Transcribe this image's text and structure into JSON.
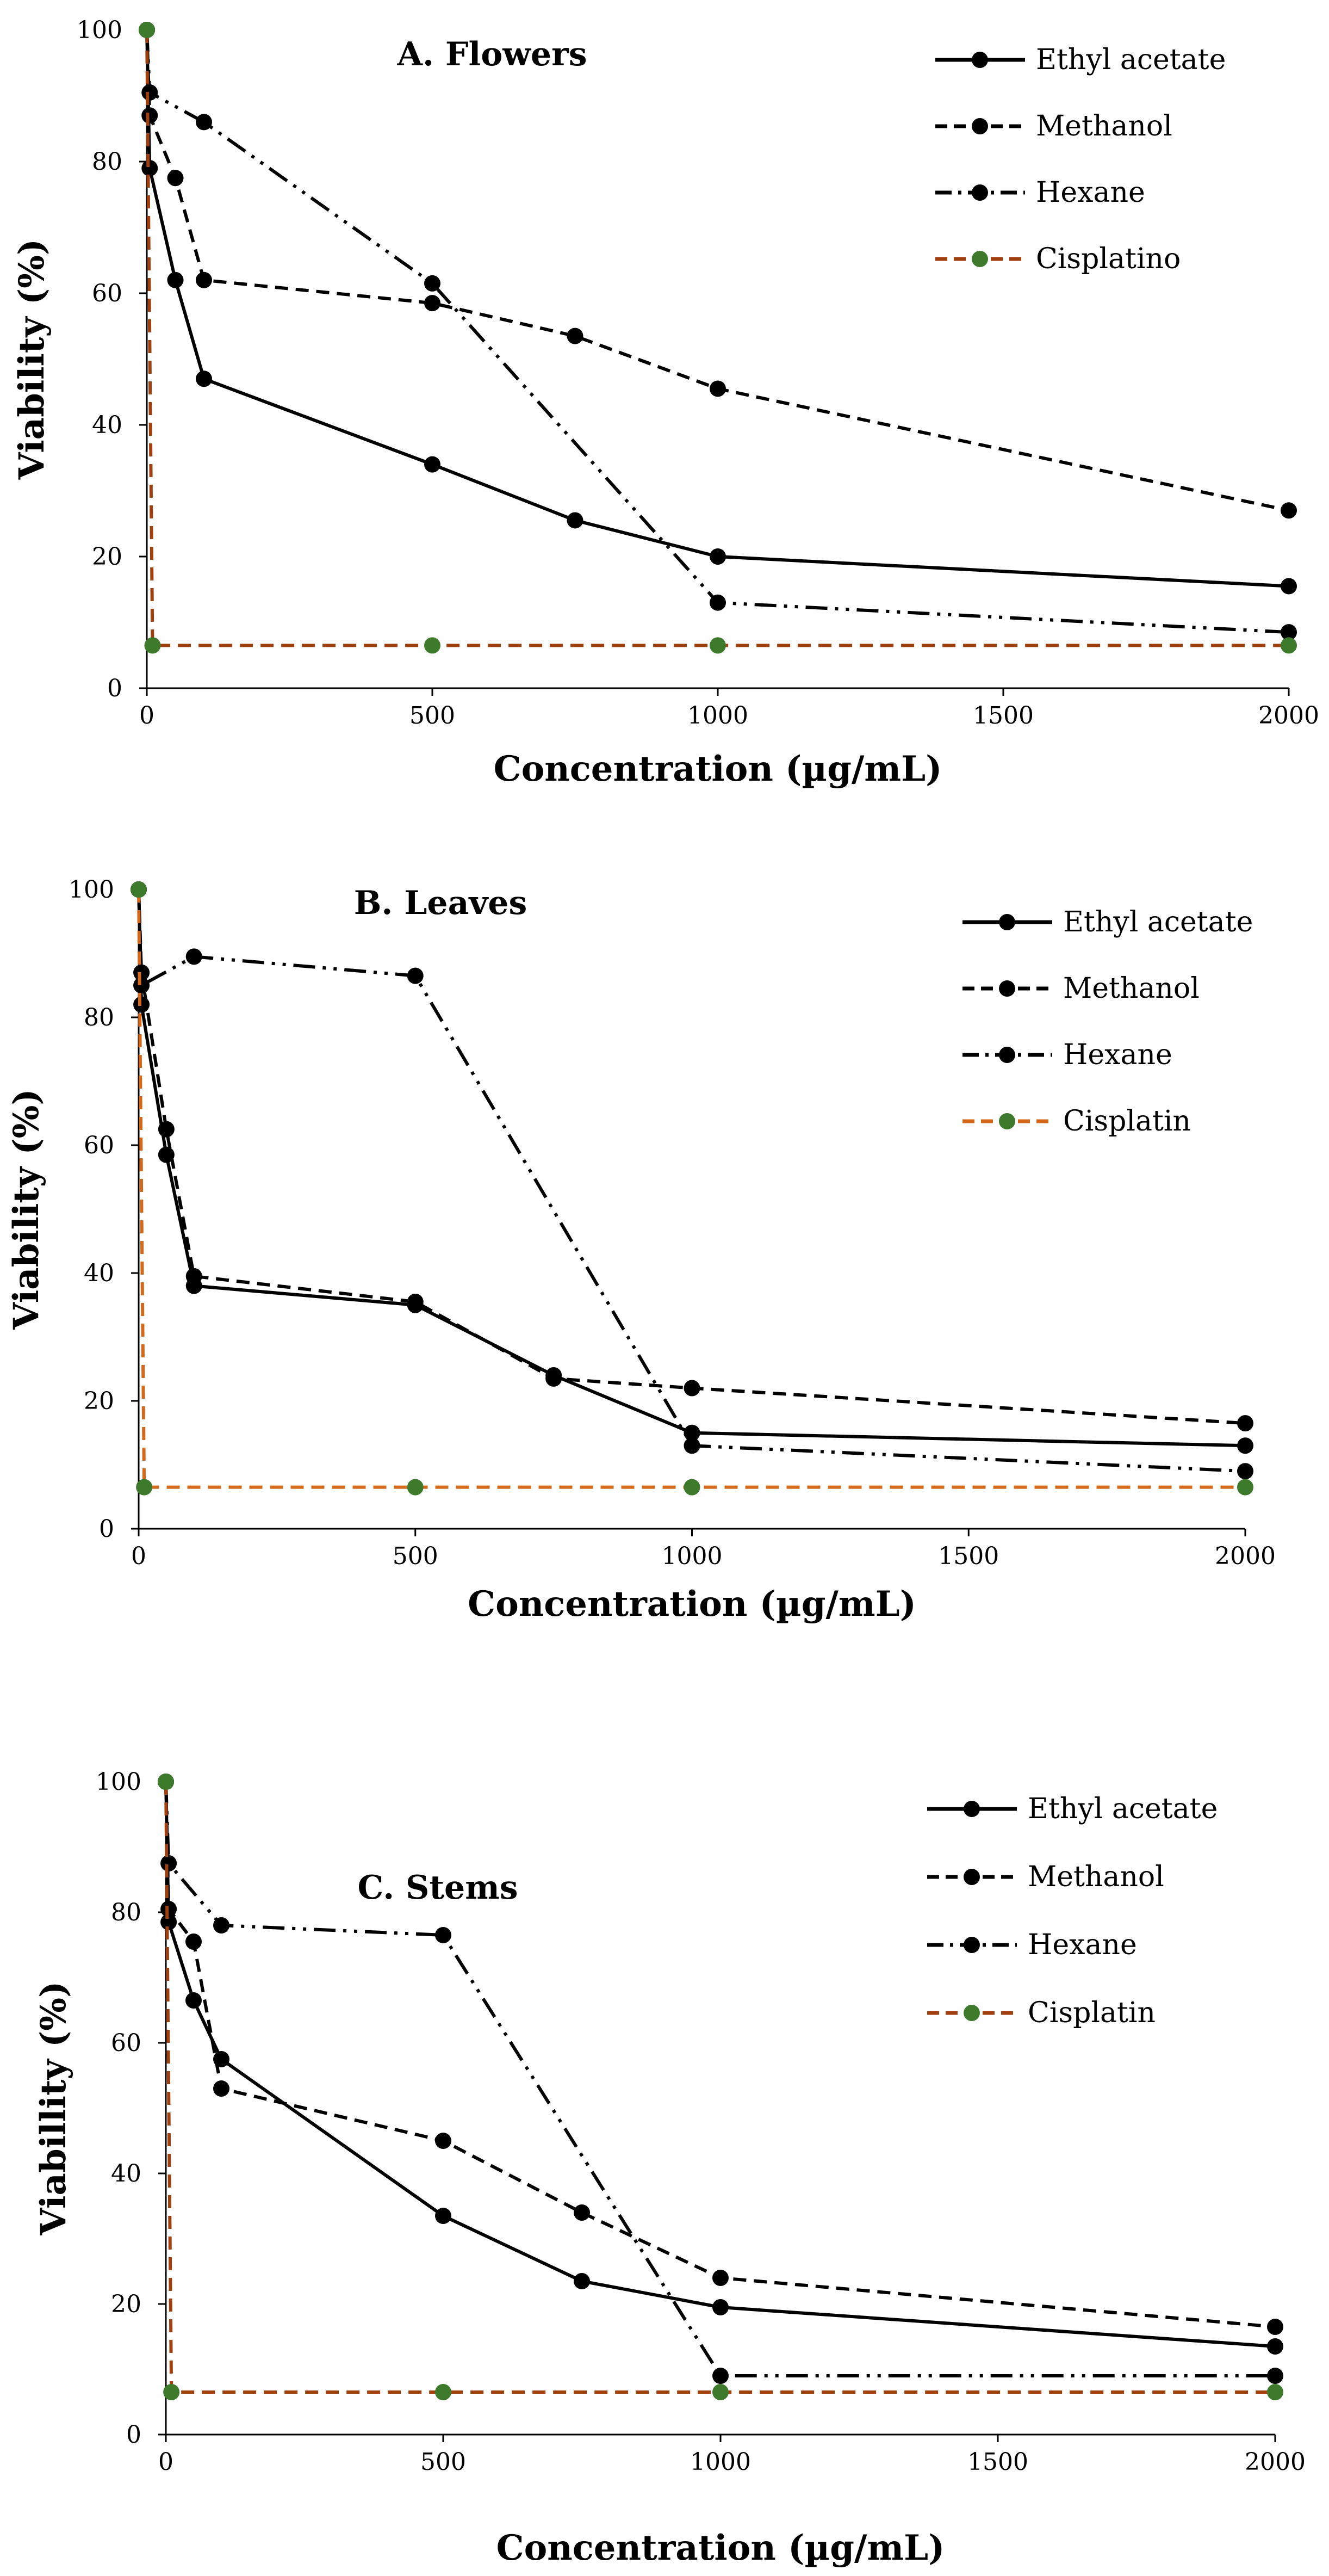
{
  "chart_data": [
    {
      "type": "line",
      "title": "A.  Flowers",
      "xlabel": "Concentration  (µg/mL)",
      "ylabel": "Viability  (%)",
      "xlim": [
        0,
        2000
      ],
      "ylim": [
        0,
        100
      ],
      "xticks": [
        "0",
        "500",
        "1000",
        "1500",
        "2000"
      ],
      "yticks": [
        "0",
        "20",
        "40",
        "60",
        "80",
        "100"
      ],
      "grid": false,
      "legend_position": "top-right",
      "series": [
        {
          "name": "Ethyl acetate",
          "color": "#000000",
          "marker_color": "#000000",
          "dash": "solid",
          "points": [
            [
              0,
              100
            ],
            [
              5,
              79
            ],
            [
              50,
              62
            ],
            [
              100,
              47
            ],
            [
              500,
              34
            ],
            [
              750,
              25.5
            ],
            [
              1000,
              20
            ],
            [
              2000,
              15.5
            ]
          ]
        },
        {
          "name": "Methanol",
          "color": "#000000",
          "marker_color": "#000000",
          "dash": "dash",
          "points": [
            [
              0,
              100
            ],
            [
              5,
              87
            ],
            [
              50,
              77.5
            ],
            [
              100,
              62
            ],
            [
              500,
              58.5
            ],
            [
              750,
              53.5
            ],
            [
              1000,
              45.5
            ],
            [
              2000,
              27
            ]
          ]
        },
        {
          "name": "Hexane",
          "color": "#000000",
          "marker_color": "#000000",
          "dash": "dashdotdot",
          "points": [
            [
              0,
              100
            ],
            [
              5,
              90.5
            ],
            [
              100,
              86
            ],
            [
              500,
              61.5
            ],
            [
              1000,
              13
            ],
            [
              2000,
              8.5
            ]
          ]
        },
        {
          "name": "Cisplatino",
          "color": "#a0400f",
          "marker_color": "#3d7a2c",
          "dash": "dash",
          "points": [
            [
              0,
              100
            ],
            [
              10,
              6.5
            ],
            [
              500,
              6.5
            ],
            [
              1000,
              6.5
            ],
            [
              2000,
              6.5
            ]
          ]
        }
      ]
    },
    {
      "type": "line",
      "title": "B. Leaves",
      "xlabel": "Concentration  (µg/mL)",
      "ylabel": "Viability (%)",
      "xlim": [
        0,
        2000
      ],
      "ylim": [
        0,
        100
      ],
      "xticks": [
        "0",
        "500",
        "1000",
        "1500",
        "2000"
      ],
      "yticks": [
        "0",
        "20",
        "40",
        "60",
        "80",
        "100"
      ],
      "grid": false,
      "legend_position": "top-right",
      "series": [
        {
          "name": "Ethyl acetate",
          "color": "#000000",
          "marker_color": "#000000",
          "dash": "solid",
          "points": [
            [
              0,
              100
            ],
            [
              5,
              82
            ],
            [
              50,
              58.5
            ],
            [
              100,
              38
            ],
            [
              500,
              35
            ],
            [
              750,
              24
            ],
            [
              1000,
              15
            ],
            [
              2000,
              13
            ]
          ]
        },
        {
          "name": "Methanol",
          "color": "#000000",
          "marker_color": "#000000",
          "dash": "dash",
          "points": [
            [
              0,
              100
            ],
            [
              5,
              87
            ],
            [
              50,
              62.5
            ],
            [
              100,
              39.5
            ],
            [
              500,
              35.5
            ],
            [
              750,
              23.5
            ],
            [
              1000,
              22
            ],
            [
              2000,
              16.5
            ]
          ]
        },
        {
          "name": "Hexane",
          "color": "#000000",
          "marker_color": "#000000",
          "dash": "dashdotdot",
          "points": [
            [
              0,
              100
            ],
            [
              5,
              85
            ],
            [
              100,
              89.5
            ],
            [
              500,
              86.5
            ],
            [
              1000,
              13
            ],
            [
              2000,
              9
            ]
          ]
        },
        {
          "name": "Cisplatin",
          "color": "#d4691c",
          "marker_color": "#3d7a2c",
          "dash": "dash",
          "points": [
            [
              0,
              100
            ],
            [
              10,
              6.5
            ],
            [
              500,
              6.5
            ],
            [
              1000,
              6.5
            ],
            [
              2000,
              6.5
            ]
          ]
        }
      ]
    },
    {
      "type": "line",
      "title": "C. Stems",
      "xlabel": "Concentration  (µg/mL)",
      "ylabel": "Viabillity  (%)",
      "xlim": [
        0,
        2000
      ],
      "ylim": [
        0,
        100
      ],
      "xticks": [
        "0",
        "500",
        "1000",
        "1500",
        "2000"
      ],
      "yticks": [
        "0",
        "20",
        "40",
        "60",
        "80",
        "100"
      ],
      "grid": false,
      "legend_position": "top-right",
      "series": [
        {
          "name": "Ethyl acetate",
          "color": "#000000",
          "marker_color": "#000000",
          "dash": "solid",
          "points": [
            [
              0,
              100
            ],
            [
              5,
              78.5
            ],
            [
              50,
              66.5
            ],
            [
              100,
              57.5
            ],
            [
              500,
              33.5
            ],
            [
              750,
              23.5
            ],
            [
              1000,
              19.5
            ],
            [
              2000,
              13.5
            ]
          ]
        },
        {
          "name": "Methanol",
          "color": "#000000",
          "marker_color": "#000000",
          "dash": "dash",
          "points": [
            [
              0,
              100
            ],
            [
              5,
              80.5
            ],
            [
              50,
              75.5
            ],
            [
              100,
              53
            ],
            [
              500,
              45
            ],
            [
              750,
              34
            ],
            [
              1000,
              24
            ],
            [
              2000,
              16.5
            ]
          ]
        },
        {
          "name": "Hexane",
          "color": "#000000",
          "marker_color": "#000000",
          "dash": "dashdotdot",
          "points": [
            [
              0,
              100
            ],
            [
              5,
              87.5
            ],
            [
              100,
              78
            ],
            [
              500,
              76.5
            ],
            [
              1000,
              9
            ],
            [
              2000,
              9
            ]
          ]
        },
        {
          "name": "Cisplatin",
          "color": "#a0400f",
          "marker_color": "#3d7a2c",
          "dash": "dash",
          "points": [
            [
              0,
              100
            ],
            [
              10,
              6.5
            ],
            [
              500,
              6.5
            ],
            [
              1000,
              6.5
            ],
            [
              2000,
              6.5
            ]
          ]
        }
      ]
    }
  ]
}
